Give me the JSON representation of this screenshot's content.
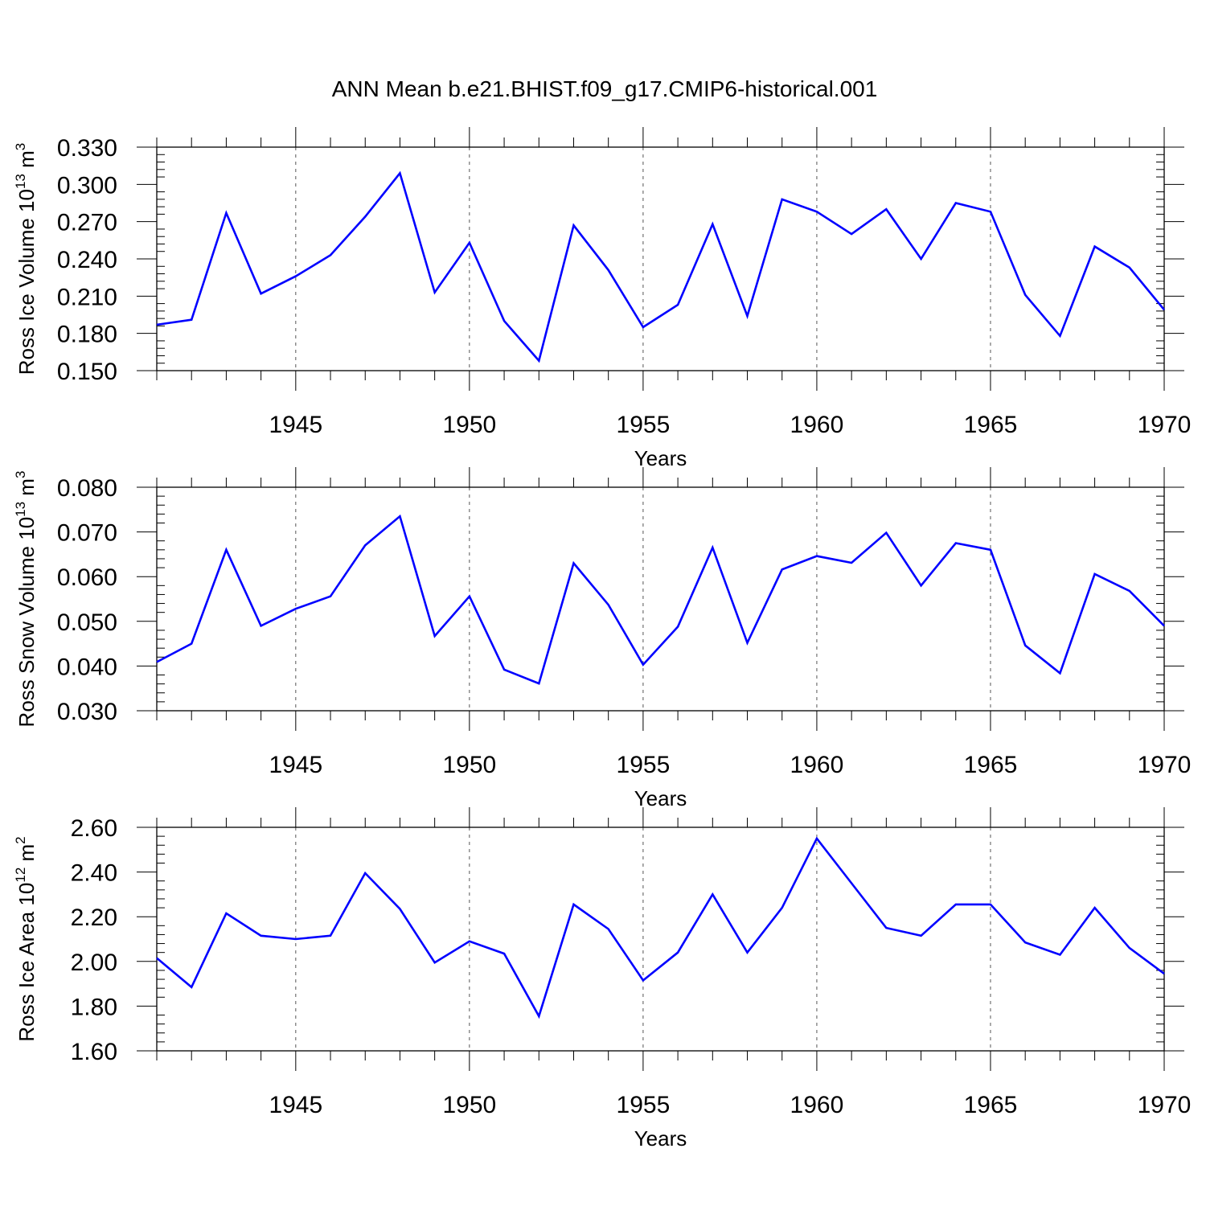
{
  "figure": {
    "title": "ANN Mean b.e21.BHIST.f09_g17.CMIP6-historical.001"
  },
  "colors": {
    "series": "#0000ff",
    "axis": "#000000",
    "grid": "#555555",
    "background": "#ffffff"
  },
  "chart_data": [
    {
      "type": "line",
      "title": "ANN Mean b.e21.BHIST.f09_g17.CMIP6-historical.001",
      "xlabel": "Years",
      "ylabel": {
        "text": "Ross Ice Volume 10",
        "sup": "13",
        "unit": " m",
        "unit_sup": "3"
      },
      "xlim": [
        1941,
        1970
      ],
      "ylim": [
        0.15,
        0.33
      ],
      "xticks": [
        "1945",
        "1950",
        "1955",
        "1960",
        "1965",
        "1970"
      ],
      "yticks": [
        "0.150",
        "0.180",
        "0.210",
        "0.240",
        "0.270",
        "0.300",
        "0.330"
      ],
      "grid": "vertical dashed at major x ticks",
      "x": [
        1941,
        1942,
        1943,
        1944,
        1945,
        1946,
        1947,
        1948,
        1949,
        1950,
        1951,
        1952,
        1953,
        1954,
        1955,
        1956,
        1957,
        1958,
        1959,
        1960,
        1961,
        1962,
        1963,
        1964,
        1965,
        1966,
        1967,
        1968,
        1969,
        1970
      ],
      "values": [
        0.187,
        0.191,
        0.277,
        0.212,
        0.226,
        0.243,
        0.274,
        0.309,
        0.213,
        0.253,
        0.19,
        0.158,
        0.267,
        0.231,
        0.185,
        0.203,
        0.268,
        0.194,
        0.288,
        0.278,
        0.26,
        0.28,
        0.24,
        0.285,
        0.278,
        0.211,
        0.178,
        0.25,
        0.233,
        0.199
      ]
    },
    {
      "type": "line",
      "xlabel": "Years",
      "ylabel": {
        "text": "Ross Snow Volume 10",
        "sup": "13",
        "unit": " m",
        "unit_sup": "3"
      },
      "xlim": [
        1941,
        1970
      ],
      "ylim": [
        0.03,
        0.08
      ],
      "xticks": [
        "1945",
        "1950",
        "1955",
        "1960",
        "1965",
        "1970"
      ],
      "yticks": [
        "0.030",
        "0.040",
        "0.050",
        "0.060",
        "0.070",
        "0.080"
      ],
      "grid": "vertical dashed at major x ticks",
      "x": [
        1941,
        1942,
        1943,
        1944,
        1945,
        1946,
        1947,
        1948,
        1949,
        1950,
        1951,
        1952,
        1953,
        1954,
        1955,
        1956,
        1957,
        1958,
        1959,
        1960,
        1961,
        1962,
        1963,
        1964,
        1965,
        1966,
        1967,
        1968,
        1969,
        1970
      ],
      "values": [
        0.0409,
        0.045,
        0.066,
        0.049,
        0.0528,
        0.0556,
        0.067,
        0.0735,
        0.0467,
        0.0556,
        0.0392,
        0.0361,
        0.063,
        0.0537,
        0.0403,
        0.0488,
        0.0665,
        0.0452,
        0.0616,
        0.0646,
        0.0631,
        0.0698,
        0.058,
        0.0675,
        0.066,
        0.0446,
        0.0384,
        0.0606,
        0.0568,
        0.049
      ]
    },
    {
      "type": "line",
      "xlabel": "Years",
      "ylabel": {
        "text": "Ross Ice Area 10",
        "sup": "12",
        "unit": " m",
        "unit_sup": "2"
      },
      "xlim": [
        1941,
        1970
      ],
      "ylim": [
        1.6,
        2.6
      ],
      "xticks": [
        "1945",
        "1950",
        "1955",
        "1960",
        "1965",
        "1970"
      ],
      "yticks": [
        "1.60",
        "1.80",
        "2.00",
        "2.20",
        "2.40",
        "2.60"
      ],
      "grid": "vertical dashed at major x ticks",
      "x": [
        1941,
        1942,
        1943,
        1944,
        1945,
        1946,
        1947,
        1948,
        1949,
        1950,
        1951,
        1952,
        1953,
        1954,
        1955,
        1956,
        1957,
        1958,
        1959,
        1960,
        1961,
        1962,
        1963,
        1964,
        1965,
        1966,
        1967,
        1968,
        1969,
        1970
      ],
      "values": [
        2.015,
        1.885,
        2.215,
        2.115,
        2.1,
        2.115,
        2.395,
        2.235,
        1.995,
        2.09,
        2.035,
        1.755,
        2.255,
        2.145,
        1.915,
        2.04,
        2.3,
        2.04,
        2.24,
        2.55,
        2.35,
        2.15,
        2.115,
        2.255,
        2.255,
        2.085,
        2.03,
        2.24,
        2.06,
        1.945
      ]
    }
  ]
}
